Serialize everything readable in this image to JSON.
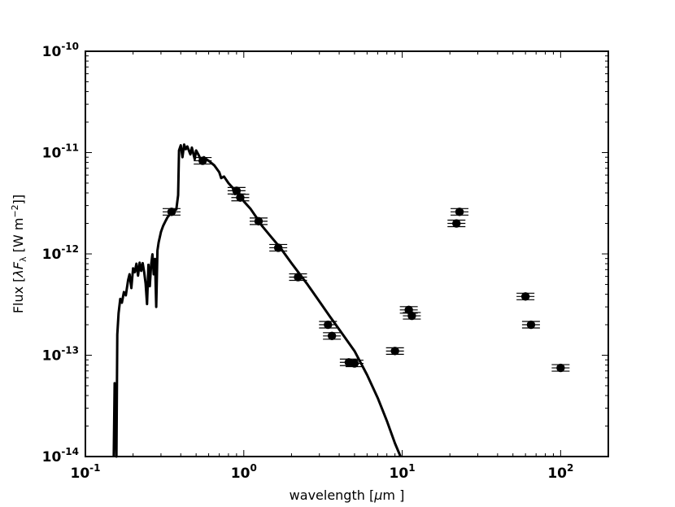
{
  "chart_data": {
    "type": "scatter",
    "title": "",
    "x_scale": "log",
    "y_scale": "log",
    "xlim": [
      0.1,
      200
    ],
    "ylim": [
      1e-14,
      1e-10
    ],
    "xlabel": {
      "prefix": "wavelength [",
      "symbol": "μ",
      "unit": "m ]"
    },
    "ylabel": {
      "prefix": "Flux [",
      "symbol": "λF",
      "subscript": "λ",
      "middle": " [W m",
      "superscript": "−2",
      "suffix": "]]"
    },
    "x_ticks": [
      {
        "value": 0.1,
        "base": "10",
        "exp": "-1"
      },
      {
        "value": 1,
        "base": "10",
        "exp": "0"
      },
      {
        "value": 10,
        "base": "10",
        "exp": "1"
      },
      {
        "value": 100,
        "base": "10",
        "exp": "2"
      }
    ],
    "y_ticks": [
      {
        "value": 1e-14,
        "base": "10",
        "exp": "-14"
      },
      {
        "value": 1e-13,
        "base": "10",
        "exp": "-13"
      },
      {
        "value": 1e-12,
        "base": "10",
        "exp": "-12"
      },
      {
        "value": 1e-11,
        "base": "10",
        "exp": "-11"
      },
      {
        "value": 1e-10,
        "base": "10",
        "exp": "-10"
      }
    ],
    "grid": false,
    "legend": "none",
    "colors": {
      "line": "#000000",
      "points": "#000000",
      "axes": "#000000"
    },
    "series": [
      {
        "type": "line",
        "points": [
          [
            0.151,
            1e-14
          ],
          [
            0.153,
            5.3e-14
          ],
          [
            0.155,
            3e-14
          ],
          [
            0.157,
            1e-14
          ],
          [
            0.159,
            1.6e-13
          ],
          [
            0.162,
            2.6e-13
          ],
          [
            0.166,
            3.6e-13
          ],
          [
            0.17,
            3.3e-13
          ],
          [
            0.175,
            4.2e-13
          ],
          [
            0.18,
            3.9e-13
          ],
          [
            0.186,
            5.5e-13
          ],
          [
            0.19,
            6.3e-13
          ],
          [
            0.195,
            4.6e-13
          ],
          [
            0.2,
            7.2e-13
          ],
          [
            0.205,
            6.6e-13
          ],
          [
            0.21,
            8e-13
          ],
          [
            0.215,
            6.1e-13
          ],
          [
            0.22,
            8.2e-13
          ],
          [
            0.225,
            6.8e-13
          ],
          [
            0.23,
            8.1e-13
          ],
          [
            0.235,
            6.6e-13
          ],
          [
            0.24,
            5.1e-13
          ],
          [
            0.245,
            3.2e-13
          ],
          [
            0.25,
            7.8e-13
          ],
          [
            0.255,
            4.8e-13
          ],
          [
            0.26,
            7.8e-13
          ],
          [
            0.265,
            9.9e-13
          ],
          [
            0.27,
            6.3e-13
          ],
          [
            0.275,
            8.9e-13
          ],
          [
            0.28,
            3e-13
          ],
          [
            0.285,
            1.08e-12
          ],
          [
            0.29,
            1.3e-12
          ],
          [
            0.3,
            1.65e-12
          ],
          [
            0.31,
            1.9e-12
          ],
          [
            0.32,
            2.1e-12
          ],
          [
            0.33,
            2.3e-12
          ],
          [
            0.345,
            2.5e-12
          ],
          [
            0.36,
            2.65e-12
          ],
          [
            0.375,
            2.75e-12
          ],
          [
            0.385,
            3.8e-12
          ],
          [
            0.39,
            1.05e-11
          ],
          [
            0.4,
            1.18e-11
          ],
          [
            0.41,
            9e-12
          ],
          [
            0.42,
            1.2e-11
          ],
          [
            0.43,
            1.08e-11
          ],
          [
            0.44,
            1.15e-11
          ],
          [
            0.46,
            9.6e-12
          ],
          [
            0.47,
            1.12e-11
          ],
          [
            0.49,
            8.6e-12
          ],
          [
            0.5,
            1.05e-11
          ],
          [
            0.52,
            9.4e-12
          ],
          [
            0.54,
            8.2e-12
          ],
          [
            0.56,
            9e-12
          ],
          [
            0.58,
            8.6e-12
          ],
          [
            0.6,
            8.3e-12
          ],
          [
            0.65,
            7.5e-12
          ],
          [
            0.7,
            6.4e-12
          ],
          [
            0.72,
            5.6e-12
          ],
          [
            0.75,
            5.8e-12
          ],
          [
            0.8,
            5e-12
          ],
          [
            0.85,
            4.5e-12
          ],
          [
            0.88,
            3.9e-12
          ],
          [
            0.9,
            4.4e-12
          ],
          [
            0.93,
            4e-12
          ],
          [
            0.96,
            3.7e-12
          ],
          [
            1.0,
            3.3e-12
          ],
          [
            1.1,
            2.8e-12
          ],
          [
            1.2,
            2.3e-12
          ],
          [
            1.3,
            1.9e-12
          ],
          [
            1.5,
            1.45e-12
          ],
          [
            1.7,
            1.15e-12
          ],
          [
            2.0,
            8.1e-13
          ],
          [
            2.5,
            5.1e-13
          ],
          [
            3.0,
            3.4e-13
          ],
          [
            3.5,
            2.4e-13
          ],
          [
            4.0,
            1.8e-13
          ],
          [
            5.0,
            1.1e-13
          ],
          [
            6.0,
            6.4e-14
          ],
          [
            7.0,
            3.8e-14
          ],
          [
            8.0,
            2.25e-14
          ],
          [
            9.0,
            1.35e-14
          ],
          [
            9.76,
            1e-14
          ]
        ]
      },
      {
        "type": "scatter",
        "points": [
          {
            "x": 0.35,
            "y": 2.6e-12
          },
          {
            "x": 0.55,
            "y": 8.3e-12
          },
          {
            "x": 0.9,
            "y": 4.2e-12
          },
          {
            "x": 0.95,
            "y": 3.6e-12
          },
          {
            "x": 1.24,
            "y": 2.1e-12
          },
          {
            "x": 1.65,
            "y": 1.15e-12
          },
          {
            "x": 2.2,
            "y": 5.9e-13
          },
          {
            "x": 3.4,
            "y": 2e-13
          },
          {
            "x": 3.6,
            "y": 1.55e-13
          },
          {
            "x": 4.6,
            "y": 8.5e-14
          },
          {
            "x": 5.0,
            "y": 8.3e-14
          },
          {
            "x": 9.0,
            "y": 1.1e-13
          },
          {
            "x": 11.0,
            "y": 2.8e-13
          },
          {
            "x": 11.5,
            "y": 2.45e-13
          },
          {
            "x": 22.0,
            "y": 2e-12
          },
          {
            "x": 23.0,
            "y": 2.6e-12
          },
          {
            "x": 60.0,
            "y": 3.8e-13
          },
          {
            "x": 65.0,
            "y": 2e-13
          },
          {
            "x": 100.0,
            "y": 7.5e-14
          }
        ]
      }
    ]
  }
}
